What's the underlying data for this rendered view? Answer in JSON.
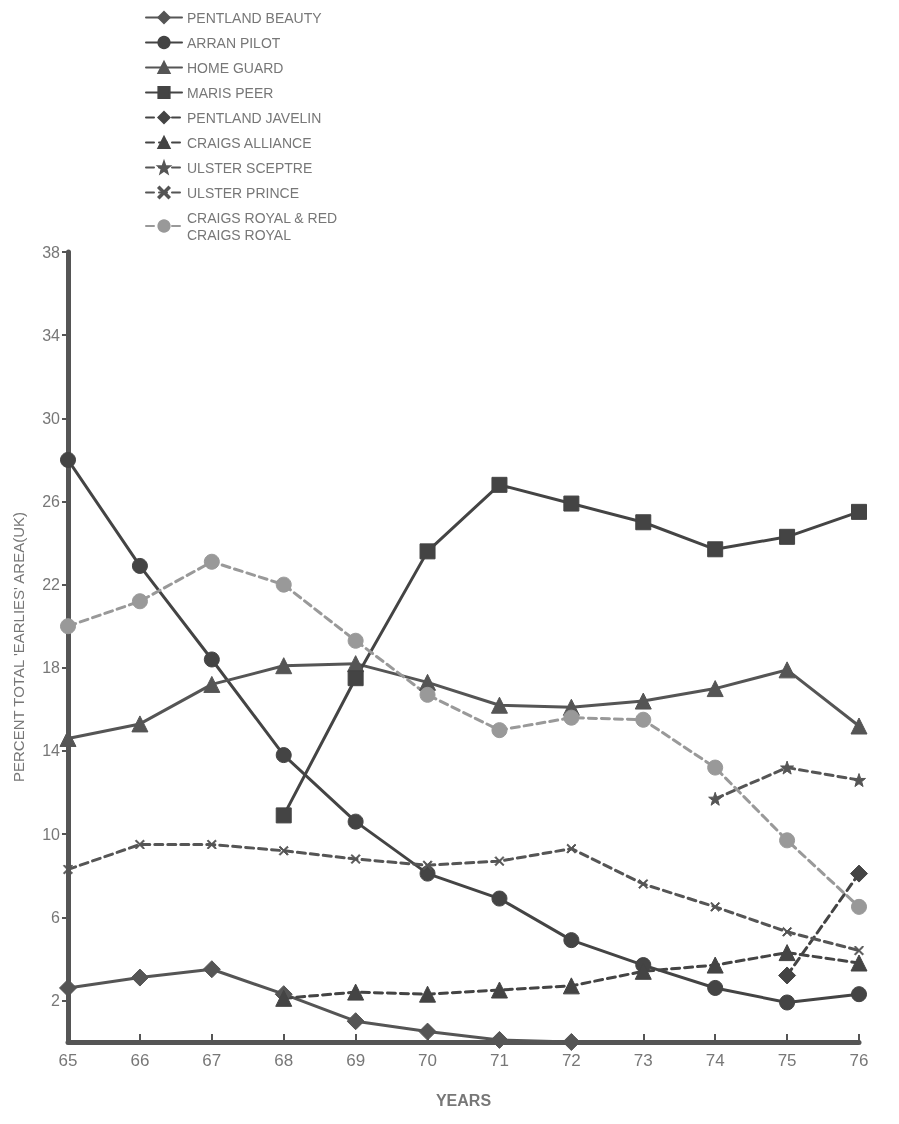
{
  "chart_data": {
    "type": "line",
    "xlabel": "YEARS",
    "ylabel": "PERCENT TOTAL 'EARLIES' AREA(UK)",
    "categories": [
      "65",
      "66",
      "67",
      "68",
      "69",
      "70",
      "71",
      "72",
      "73",
      "74",
      "75",
      "76"
    ],
    "ylim": [
      0,
      38
    ],
    "yticks": [
      2,
      6,
      10,
      14,
      18,
      22,
      26,
      30,
      34,
      38
    ],
    "grid": false,
    "legend": "top left",
    "series": [
      {
        "name": "PENTLAND BEAUTY",
        "color": "#555555",
        "marker": "diamond",
        "line_style": "solid",
        "values": [
          2.6,
          3.1,
          3.5,
          2.3,
          1.0,
          0.5,
          0.1,
          0,
          null,
          null,
          null,
          null
        ]
      },
      {
        "name": "ARRAN PILOT",
        "color": "#444444",
        "marker": "circle",
        "line_style": "solid",
        "values": [
          28,
          22.9,
          18.4,
          13.8,
          10.6,
          8.1,
          6.9,
          4.9,
          3.7,
          2.6,
          1.9,
          2.3
        ]
      },
      {
        "name": "HOME GUARD",
        "color": "#555555",
        "marker": "triangle",
        "line_style": "solid",
        "values": [
          14.6,
          15.3,
          17.2,
          18.1,
          18.2,
          17.3,
          16.2,
          16.1,
          16.4,
          17.0,
          17.9,
          15.2
        ]
      },
      {
        "name": "MARIS PEER",
        "color": "#444444",
        "marker": "square",
        "line_style": "solid",
        "values": [
          null,
          null,
          null,
          10.9,
          17.5,
          23.6,
          26.8,
          25.9,
          25.0,
          23.7,
          24.3,
          25.5
        ]
      },
      {
        "name": "PENTLAND JAVELIN",
        "color": "#444444",
        "marker": "diamond",
        "line_style": "dashed",
        "values": [
          null,
          null,
          null,
          null,
          null,
          null,
          null,
          null,
          null,
          null,
          3.2,
          8.1
        ]
      },
      {
        "name": "CRAIGS ALLIANCE",
        "color": "#444444",
        "marker": "triangle",
        "line_style": "dashed",
        "values": [
          null,
          null,
          null,
          2.1,
          2.4,
          2.3,
          2.5,
          2.7,
          3.4,
          3.7,
          4.3,
          3.8
        ]
      },
      {
        "name": "ULSTER SCEPTRE",
        "color": "#555555",
        "marker": "star",
        "line_style": "dashed",
        "values": [
          null,
          null,
          null,
          null,
          null,
          null,
          null,
          null,
          null,
          11.7,
          13.2,
          12.6
        ]
      },
      {
        "name": "ULSTER PRINCE",
        "color": "#555555",
        "marker": "cross",
        "line_style": "dashed",
        "values": [
          8.3,
          9.5,
          9.5,
          9.2,
          8.8,
          8.5,
          8.7,
          9.3,
          7.6,
          6.5,
          5.3,
          4.4
        ]
      },
      {
        "name": "CRAIGS ROYAL & RED CRAIGS ROYAL",
        "color": "#999999",
        "marker": "circle",
        "line_style": "dashed",
        "values": [
          20.0,
          21.2,
          23.1,
          22.0,
          19.3,
          16.7,
          15.0,
          15.6,
          15.5,
          13.2,
          9.7,
          6.5
        ]
      }
    ]
  }
}
